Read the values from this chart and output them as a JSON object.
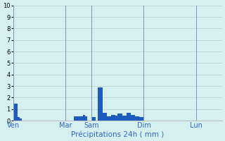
{
  "title": "Précipitations 24h ( mm )",
  "ylabel": "",
  "ylim": [
    0,
    10
  ],
  "yticks": [
    0,
    1,
    2,
    3,
    4,
    5,
    6,
    7,
    8,
    9,
    10
  ],
  "background_color": "#d6f0f0",
  "grid_color": "#b0d0d0",
  "bar_color": "#1e5bbf",
  "bar_color2": "#1e90ff",
  "day_labels": [
    "Ven",
    "Mar",
    "Sam",
    "Dim",
    "Lun"
  ],
  "day_positions": [
    0,
    24,
    36,
    60,
    84
  ],
  "num_bars": 96,
  "bar_values": [
    1.5,
    1.5,
    0.3,
    0.2,
    0,
    0,
    0,
    0,
    0,
    0,
    0,
    0,
    0,
    0,
    0,
    0,
    0,
    0,
    0,
    0,
    0,
    0,
    0,
    0,
    0,
    0,
    0,
    0,
    0.4,
    0.4,
    0.35,
    0.35,
    0.5,
    0.4,
    0,
    0,
    0.3,
    0.3,
    0,
    2.9,
    2.9,
    0.7,
    0.7,
    0.4,
    0.4,
    0.5,
    0.5,
    0.45,
    0.6,
    0.6,
    0.45,
    0.45,
    0.7,
    0.7,
    0.5,
    0.5,
    0.4,
    0.4,
    0.3,
    0.3,
    0,
    0,
    0,
    0,
    0,
    0,
    0,
    0,
    0,
    0,
    0,
    0,
    0,
    0,
    0,
    0,
    0,
    0,
    0,
    0,
    0,
    0,
    0,
    0,
    0,
    0,
    0,
    0,
    0,
    0,
    0,
    0,
    0,
    0,
    0,
    0
  ]
}
